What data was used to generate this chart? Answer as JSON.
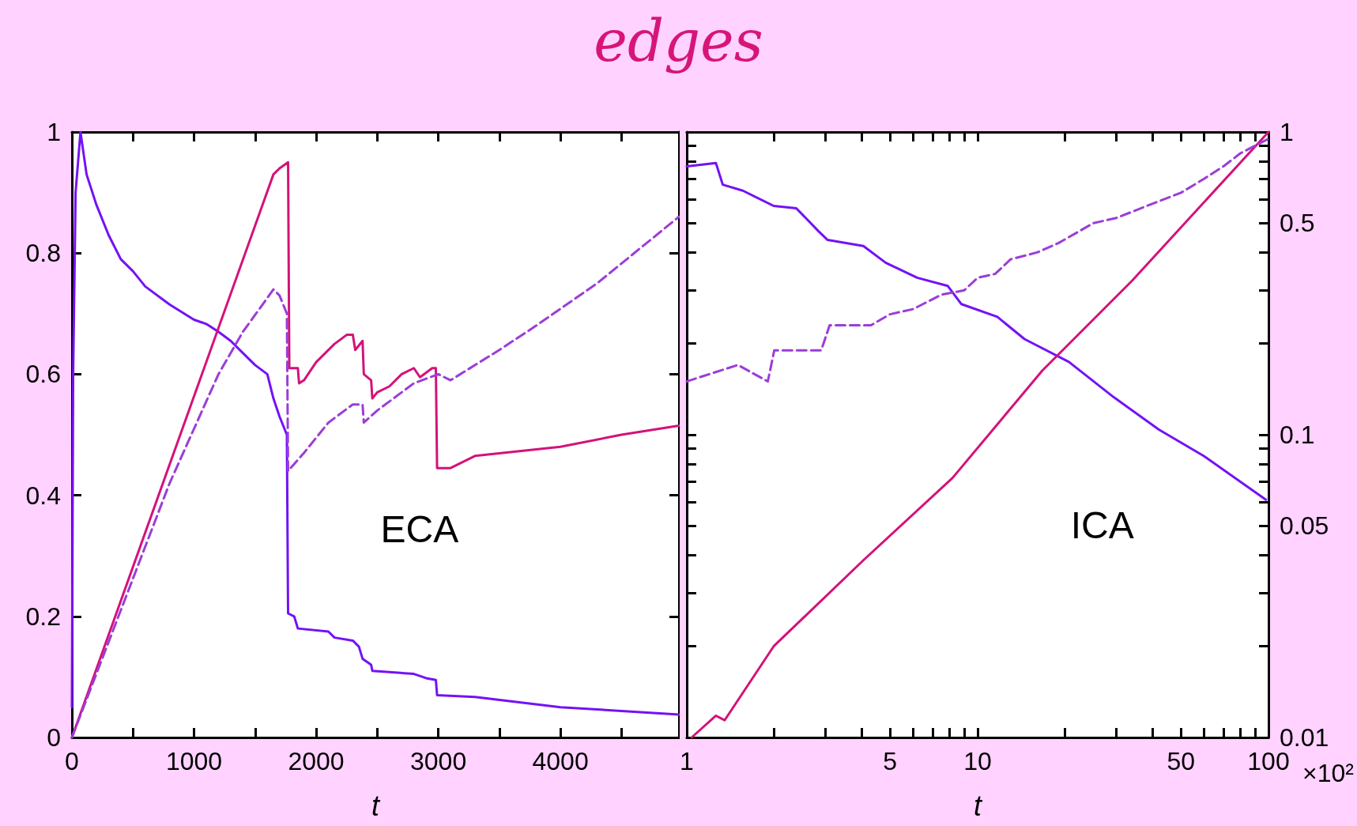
{
  "chart_data": [
    {
      "type": "line",
      "title": "edges",
      "xlabel": "t",
      "annotations": [
        "ECA"
      ],
      "xlim": [
        0,
        4970
      ],
      "ylim": [
        0,
        1
      ],
      "xticks": [
        0,
        {
          "value": 500,
          "label": null
        },
        1000,
        {
          "value": 1500,
          "label": null
        },
        2000,
        {
          "value": 2500,
          "label": null
        },
        3000,
        {
          "value": 3500,
          "label": null
        },
        4000,
        {
          "value": 4500,
          "label": null
        }
      ],
      "yticks": [
        0,
        0.2,
        0.4,
        0.6,
        0.8,
        1
      ],
      "grid": false,
      "marker": "none",
      "series": [
        {
          "color": "#7312f5",
          "line_style": "solid",
          "x": [
            0,
            10,
            30,
            70,
            120,
            200,
            300,
            400,
            500,
            600,
            800,
            1000,
            1100,
            1200,
            1300,
            1400,
            1500,
            1600,
            1650,
            1700,
            1760,
            1770,
            1820,
            1850,
            2100,
            2150,
            2300,
            2350,
            2380,
            2450,
            2460,
            2800,
            2900,
            2980,
            2990,
            3300,
            4000,
            4970
          ],
          "values": [
            0.05,
            0.6,
            0.9,
            1.0,
            0.93,
            0.88,
            0.83,
            0.79,
            0.77,
            0.745,
            0.715,
            0.69,
            0.683,
            0.67,
            0.655,
            0.635,
            0.615,
            0.6,
            0.56,
            0.53,
            0.5,
            0.205,
            0.2,
            0.18,
            0.175,
            0.165,
            0.16,
            0.15,
            0.13,
            0.12,
            0.11,
            0.105,
            0.098,
            0.095,
            0.07,
            0.067,
            0.05,
            0.038
          ]
        },
        {
          "color": "#d4127a",
          "line_style": "solid",
          "x": [
            0,
            1650,
            1700,
            1770,
            1780,
            1850,
            1860,
            1900,
            2000,
            2150,
            2250,
            2300,
            2320,
            2380,
            2390,
            2450,
            2460,
            2500,
            2600,
            2700,
            2800,
            2850,
            2950,
            2980,
            2990,
            3100,
            3300,
            4000,
            4500,
            4970
          ],
          "values": [
            0,
            0.93,
            0.94,
            0.95,
            0.61,
            0.61,
            0.585,
            0.59,
            0.62,
            0.65,
            0.665,
            0.665,
            0.64,
            0.655,
            0.6,
            0.59,
            0.56,
            0.57,
            0.58,
            0.6,
            0.61,
            0.595,
            0.61,
            0.61,
            0.445,
            0.445,
            0.465,
            0.48,
            0.5,
            0.515
          ]
        },
        {
          "color": "#9b3dd8",
          "line_style": "dashed",
          "x": [
            0,
            800,
            1200,
            1400,
            1650,
            1700,
            1760,
            1770,
            1900,
            2100,
            2300,
            2380,
            2390,
            2500,
            2800,
            3000,
            3100,
            3500,
            3800,
            4300,
            4970
          ],
          "values": [
            0,
            0.42,
            0.6,
            0.67,
            0.74,
            0.73,
            0.7,
            0.44,
            0.47,
            0.52,
            0.55,
            0.55,
            0.52,
            0.54,
            0.585,
            0.6,
            0.59,
            0.64,
            0.68,
            0.75,
            0.86
          ]
        }
      ]
    },
    {
      "type": "line",
      "xlabel": "t",
      "annotations": [
        "ICA",
        "×10²"
      ],
      "log": "xy",
      "xlim": [
        1,
        100
      ],
      "ylim": [
        0.01,
        1
      ],
      "xticks": [
        1,
        {
          "value": 2,
          "label": null
        },
        {
          "value": 3,
          "label": null
        },
        {
          "value": 4,
          "label": null
        },
        5,
        {
          "value": 6,
          "label": null
        },
        {
          "value": 7,
          "label": null
        },
        {
          "value": 8,
          "label": null
        },
        {
          "value": 9,
          "label": null
        },
        10,
        {
          "value": 20,
          "label": null
        },
        {
          "value": 30,
          "label": null
        },
        {
          "value": 40,
          "label": null
        },
        50,
        {
          "value": 60,
          "label": null
        },
        {
          "value": 70,
          "label": null
        },
        {
          "value": 80,
          "label": null
        },
        {
          "value": 90,
          "label": null
        },
        100
      ],
      "yticks": [
        0.01,
        {
          "value": 0.02,
          "label": null
        },
        {
          "value": 0.03,
          "label": null
        },
        {
          "value": 0.04,
          "label": null
        },
        0.05,
        {
          "value": 0.06,
          "label": null
        },
        {
          "value": 0.07,
          "label": null
        },
        {
          "value": 0.08,
          "label": null
        },
        {
          "value": 0.09,
          "label": null
        },
        0.1,
        {
          "value": 0.2,
          "label": null
        },
        {
          "value": 0.3,
          "label": null
        },
        {
          "value": 0.4,
          "label": null
        },
        0.5,
        {
          "value": 0.6,
          "label": null
        },
        {
          "value": 0.7,
          "label": null
        },
        {
          "value": 0.8,
          "label": null
        },
        {
          "value": 0.9,
          "label": null
        },
        1
      ],
      "grid": false,
      "marker": "none",
      "series": [
        {
          "color": "#7312f5",
          "line_style": "solid",
          "x": [
            1,
            1.26,
            1.33,
            1.56,
            1.99,
            2.38,
            2.84,
            3.05,
            4.05,
            4.83,
            6.2,
            7.9,
            8.8,
            11.7,
            14.5,
            20.6,
            29.4,
            42,
            60,
            98
          ],
          "values": [
            0.77,
            0.79,
            0.67,
            0.64,
            0.57,
            0.56,
            0.47,
            0.44,
            0.42,
            0.37,
            0.33,
            0.31,
            0.27,
            0.245,
            0.207,
            0.174,
            0.133,
            0.104,
            0.085,
            0.061
          ]
        },
        {
          "color": "#d4127a",
          "line_style": "solid",
          "x": [
            1.04,
            1.26,
            1.35,
            1.99,
            4.05,
            8.2,
            16.7,
            34,
            100
          ],
          "values": [
            0.01,
            0.0118,
            0.0114,
            0.02,
            0.0385,
            0.072,
            0.163,
            0.323,
            1.0
          ]
        },
        {
          "color": "#9b3dd8",
          "line_style": "dashed",
          "x": [
            1,
            1.5,
            1.9,
            2,
            2.9,
            3.1,
            4.3,
            5,
            6,
            7.5,
            9,
            10,
            11.5,
            13,
            16,
            19,
            25,
            30,
            40,
            50,
            60,
            70,
            80,
            100
          ],
          "values": [
            0.15,
            0.17,
            0.15,
            0.19,
            0.19,
            0.23,
            0.23,
            0.25,
            0.26,
            0.29,
            0.3,
            0.33,
            0.34,
            0.38,
            0.4,
            0.43,
            0.5,
            0.52,
            0.58,
            0.63,
            0.7,
            0.77,
            0.85,
            0.95
          ]
        }
      ]
    }
  ]
}
